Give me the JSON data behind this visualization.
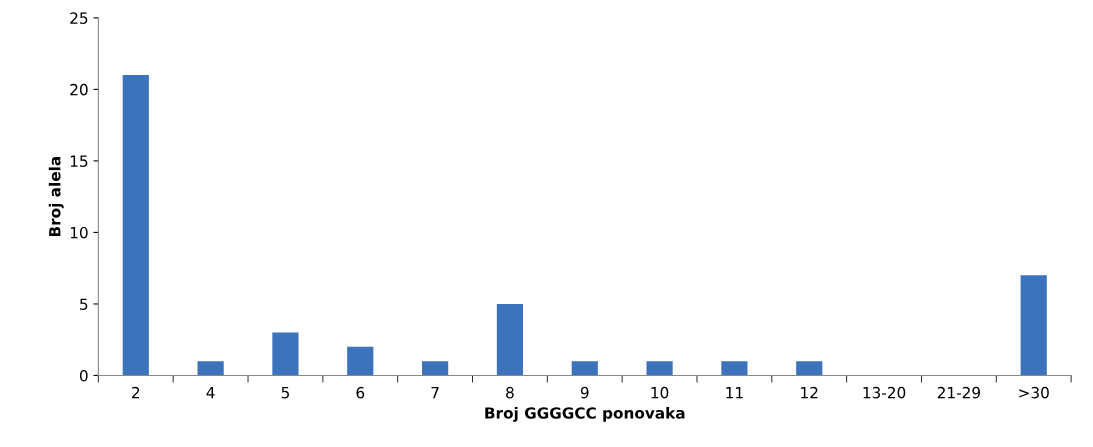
{
  "chart_data": {
    "type": "bar",
    "xlabel": "Broj GGGGCC ponovaka",
    "ylabel": "Broj alela",
    "categories": [
      "2",
      "4",
      "5",
      "6",
      "7",
      "8",
      "9",
      "10",
      "11",
      "12",
      "13-20",
      "21-29",
      ">30"
    ],
    "values": [
      21,
      1,
      3,
      2,
      1,
      5,
      1,
      1,
      1,
      1,
      0,
      0,
      7
    ],
    "color": "#3d72bd",
    "ylim": [
      0,
      25
    ],
    "yticks": [
      0,
      5,
      10,
      15,
      20,
      25
    ],
    "grid": false
  }
}
